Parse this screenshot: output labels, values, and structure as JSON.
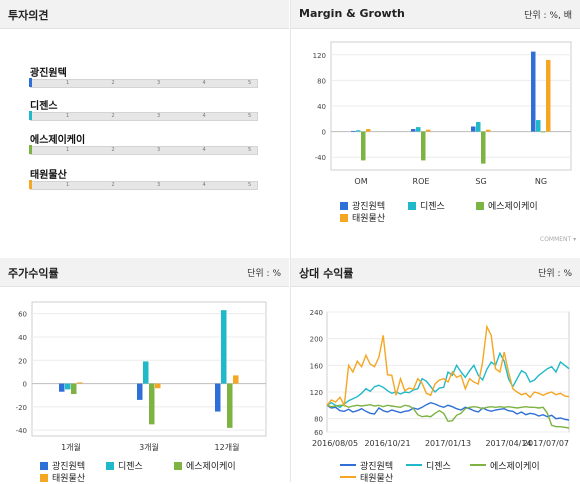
{
  "panels": {
    "opinion": {
      "title": "투자의견"
    },
    "margin": {
      "title": "Margin & Growth",
      "unit": "단위 : %, 배"
    },
    "returns": {
      "title": "주가수익률",
      "unit": "단위 : %"
    },
    "relative": {
      "title": "상대 수익률",
      "unit": "단위 : %"
    }
  },
  "comment_label": "COMMENT",
  "colors": {
    "s0": "#2f6fd8",
    "s1": "#1fb9c9",
    "s2": "#7cb342",
    "s3": "#f5a623"
  },
  "companies": [
    "광진원텍",
    "디젠스",
    "에스제이케이",
    "태원물산"
  ],
  "opinion": {
    "ticks": [
      "1",
      "2",
      "3",
      "4",
      "5"
    ],
    "items": [
      {
        "name": "광진원텍",
        "value": null
      },
      {
        "name": "디젠스",
        "value": null
      },
      {
        "name": "에스제이케이",
        "value": null
      },
      {
        "name": "태원물산",
        "value": null
      }
    ]
  },
  "chart_data": [
    {
      "type": "bar",
      "title": "Margin & Growth",
      "categories": [
        "OM",
        "ROE",
        "SG",
        "NG"
      ],
      "ylim": [
        -60,
        140
      ],
      "yticks": [
        -40,
        0,
        40,
        80,
        120
      ],
      "series": [
        {
          "name": "광진원텍",
          "values": [
            1,
            4,
            8,
            125
          ]
        },
        {
          "name": "디젠스",
          "values": [
            2,
            7,
            15,
            18
          ]
        },
        {
          "name": "에스제이케이",
          "values": [
            -45,
            -45,
            -50,
            0
          ]
        },
        {
          "name": "태원물산",
          "values": [
            4,
            3,
            3,
            112
          ]
        }
      ],
      "grid": true,
      "legend": "bottom"
    },
    {
      "type": "bar",
      "title": "주가수익률",
      "categories": [
        "1개월",
        "3개월",
        "12개월"
      ],
      "ylim": [
        -45,
        70
      ],
      "yticks": [
        -40,
        -20,
        0,
        20,
        40,
        60
      ],
      "series": [
        {
          "name": "광진원텍",
          "values": [
            -7,
            -14,
            -24
          ]
        },
        {
          "name": "디젠스",
          "values": [
            -5,
            19,
            63
          ]
        },
        {
          "name": "에스제이케이",
          "values": [
            -9,
            -35,
            -38
          ]
        },
        {
          "name": "태원물산",
          "values": [
            1,
            -4,
            7
          ]
        }
      ],
      "grid": true,
      "legend": "bottom"
    },
    {
      "type": "line",
      "title": "상대 수익률",
      "xlabels": [
        "2016/08/05",
        "2016/10/21",
        "2017/01/13",
        "2017/04/14",
        "2017/07/07"
      ],
      "ylim": [
        60,
        240
      ],
      "yticks": [
        60,
        80,
        120,
        160,
        200,
        240
      ],
      "series": [
        {
          "name": "광진원텍",
          "values": [
            100,
            96,
            97,
            92,
            91,
            94,
            90,
            92,
            95,
            91,
            88,
            87,
            96,
            92,
            90,
            93,
            91,
            89,
            91,
            92,
            96,
            94,
            97,
            101,
            104,
            102,
            99,
            97,
            100,
            98,
            95,
            93,
            97,
            95,
            92,
            90,
            96,
            93,
            91,
            93,
            94,
            95,
            92,
            91,
            87,
            90,
            86,
            88,
            87,
            84,
            86,
            83,
            85,
            80,
            81,
            79,
            78
          ]
        },
        {
          "name": "디젠스",
          "values": [
            100,
            104,
            100,
            97,
            102,
            107,
            110,
            113,
            118,
            125,
            121,
            128,
            130,
            127,
            122,
            118,
            120,
            117,
            120,
            119,
            123,
            125,
            140,
            136,
            128,
            120,
            126,
            127,
            150,
            145,
            160,
            150,
            142,
            152,
            160,
            145,
            138,
            154,
            165,
            160,
            178,
            166,
            140,
            128,
            140,
            152,
            148,
            135,
            138,
            145,
            150,
            155,
            158,
            150,
            165,
            160,
            155
          ]
        },
        {
          "name": "에스제이케이",
          "values": [
            100,
            98,
            99,
            100,
            100,
            97,
            99,
            100,
            99,
            100,
            101,
            99,
            100,
            98,
            100,
            99,
            98,
            97,
            100,
            99,
            95,
            86,
            83,
            84,
            83,
            88,
            92,
            88,
            76,
            77,
            85,
            88,
            95,
            97,
            98,
            97,
            95,
            97,
            98,
            97,
            98,
            97,
            98,
            97,
            96,
            97,
            98,
            97,
            97,
            96,
            97,
            88,
            70,
            68,
            68,
            67,
            66
          ]
        },
        {
          "name": "태원물산",
          "values": [
            100,
            108,
            105,
            112,
            100,
            160,
            150,
            166,
            158,
            175,
            162,
            158,
            172,
            205,
            146,
            145,
            115,
            140,
            122,
            126,
            124,
            140,
            133,
            118,
            115,
            132,
            138,
            140,
            135,
            150,
            142,
            145,
            125,
            140,
            135,
            132,
            165,
            218,
            205,
            155,
            150,
            180,
            150,
            125,
            120,
            116,
            118,
            112,
            120,
            118,
            115,
            118,
            120,
            116,
            118,
            114,
            113
          ]
        }
      ],
      "grid": true,
      "legend": "bottom"
    }
  ]
}
